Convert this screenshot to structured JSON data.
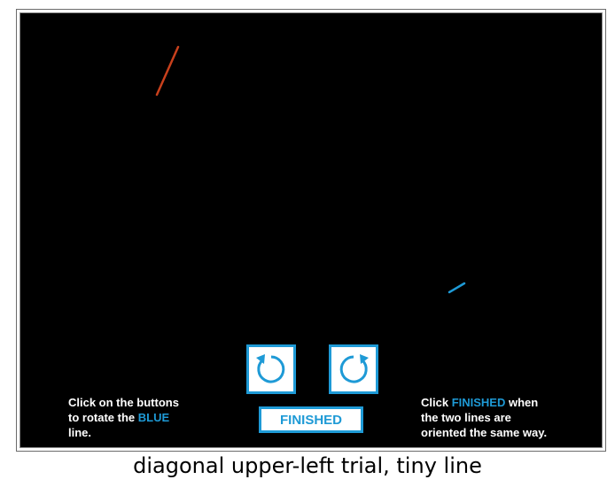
{
  "instructions": {
    "left_line1": "Click on the buttons",
    "left_line2_prefix": "to rotate the ",
    "left_line2_highlight": "BLUE",
    "left_line3": "line.",
    "right_line1_prefix": "Click ",
    "right_line1_highlight": "FINISHED",
    "right_line1_suffix": " when",
    "right_line2": "the two lines are",
    "right_line3": "oriented the same way."
  },
  "buttons": {
    "rotate_counterclockwise": "rotate-counterclockwise",
    "rotate_clockwise": "rotate-clockwise",
    "finished_label": "FINISHED"
  },
  "caption": "diagonal upper-left trial, tiny line",
  "colors": {
    "reference_line": "#c8401c",
    "adjustable_line": "#1e9ad6",
    "background": "#000000",
    "accent": "#1e9ad6"
  }
}
